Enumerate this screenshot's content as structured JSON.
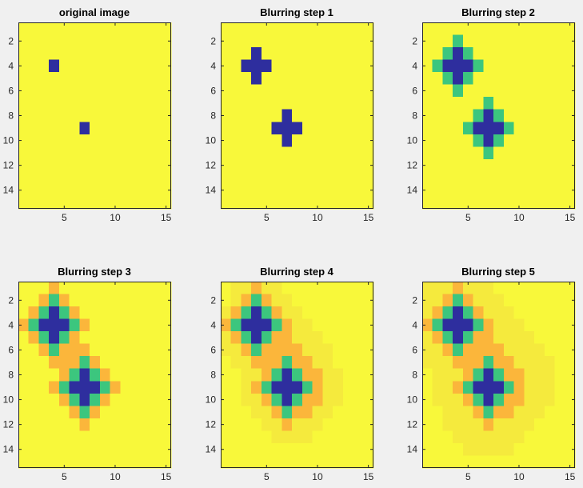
{
  "chart_data": [
    {
      "type": "heatmap",
      "title": "original image",
      "xlim": [
        0.5,
        15.5
      ],
      "ylim": [
        15.5,
        0.5
      ],
      "x_ticks": [
        5,
        10,
        15
      ],
      "y_ticks": [
        2,
        4,
        6,
        8,
        10,
        12,
        14
      ],
      "level_colors": [
        "#f8f83a",
        "#f5ea3d",
        "#fbb63b",
        "#3cc67e",
        "#2e2e9e"
      ],
      "rows": [
        "000000000000000",
        "000000000000000",
        "000000000000000",
        "000400000000000",
        "000000000000000",
        "000000000000000",
        "000000000000000",
        "000000000000000",
        "000000400000000",
        "000000000000000",
        "000000000000000",
        "000000000000000",
        "000000000000000",
        "000000000000000",
        "000000000000000"
      ]
    },
    {
      "type": "heatmap",
      "title": "Blurring step 1",
      "xlim": [
        0.5,
        15.5
      ],
      "ylim": [
        15.5,
        0.5
      ],
      "x_ticks": [
        5,
        10,
        15
      ],
      "y_ticks": [
        2,
        4,
        6,
        8,
        10,
        12,
        14
      ],
      "level_colors": [
        "#f8f83a",
        "#f5ea3d",
        "#fbb63b",
        "#3cc67e",
        "#2e2e9e"
      ],
      "rows": [
        "000000000000000",
        "000000000000000",
        "000400000000000",
        "004440000000000",
        "000400000000000",
        "000000000000000",
        "000000000000000",
        "000000400000000",
        "000004440000000",
        "000000400000000",
        "000000000000000",
        "000000000000000",
        "000000000000000",
        "000000000000000",
        "000000000000000"
      ]
    },
    {
      "type": "heatmap",
      "title": "Blurring step 2",
      "xlim": [
        0.5,
        15.5
      ],
      "ylim": [
        15.5,
        0.5
      ],
      "x_ticks": [
        5,
        10,
        15
      ],
      "y_ticks": [
        2,
        4,
        6,
        8,
        10,
        12,
        14
      ],
      "level_colors": [
        "#f8f83a",
        "#f5ea3d",
        "#fbb63b",
        "#3cc67e",
        "#2e2e9e"
      ],
      "rows": [
        "000000000000000",
        "000300000000000",
        "003430000000000",
        "034443000000000",
        "003430000000000",
        "000300000000000",
        "000000300000000",
        "000003430000000",
        "000034443000000",
        "000003430000000",
        "000000300000000",
        "000000000000000",
        "000000000000000",
        "000000000000000",
        "000000000000000"
      ]
    },
    {
      "type": "heatmap",
      "title": "Blurring step 3",
      "xlim": [
        0.5,
        15.5
      ],
      "ylim": [
        15.5,
        0.5
      ],
      "x_ticks": [
        5,
        10,
        15
      ],
      "y_ticks": [
        2,
        4,
        6,
        8,
        10,
        12,
        14
      ],
      "level_colors": [
        "#f8f83a",
        "#f5ea3d",
        "#fbb63b",
        "#3cc67e",
        "#2e2e9e"
      ],
      "rows": [
        "000200000000000",
        "002320000000000",
        "023432000000000",
        "234443200000000",
        "023432000000000",
        "002322200000000",
        "000222320000000",
        "000023432000000",
        "000234443200000",
        "000023432000000",
        "000002320000000",
        "000000200000000",
        "000000000000000",
        "000000000000000",
        "000000000000000"
      ]
    },
    {
      "type": "heatmap",
      "title": "Blurring step 4",
      "xlim": [
        0.5,
        15.5
      ],
      "ylim": [
        15.5,
        0.5
      ],
      "x_ticks": [
        5,
        10,
        15
      ],
      "y_ticks": [
        2,
        4,
        6,
        8,
        10,
        12,
        14
      ],
      "level_colors": [
        "#f8f83a",
        "#f5ea3d",
        "#fbb63b",
        "#3cc67e",
        "#2e2e9e"
      ],
      "rows": [
        "011211000000000",
        "012321100000000",
        "123432110000000",
        "234443211000000",
        "123432211100000",
        "112322221110000",
        "011222322110000",
        "001123432211000",
        "001234443211000",
        "001123432211000",
        "000112322110000",
        "000011211100000",
        "000001111000000",
        "000000000000000",
        "000000000000000"
      ]
    },
    {
      "type": "heatmap",
      "title": "Blurring step 5",
      "xlim": [
        0.5,
        15.5
      ],
      "ylim": [
        15.5,
        0.5
      ],
      "x_ticks": [
        5,
        10,
        15
      ],
      "y_ticks": [
        2,
        4,
        6,
        8,
        10,
        12,
        14
      ],
      "level_colors": [
        "#f8f83a",
        "#f5ea3d",
        "#fbb63b",
        "#3cc67e",
        "#2e2e9e"
      ],
      "rows": [
        "111211100000000",
        "112321110000000",
        "123432111000000",
        "234443211100000",
        "123432211110000",
        "112322221111000",
        "111222322111100",
        "011123432211100",
        "011234443211100",
        "011123432211100",
        "001112322111000",
        "001111211110000",
        "000111111100000",
        "000011111000000",
        "000000000000000"
      ]
    }
  ]
}
